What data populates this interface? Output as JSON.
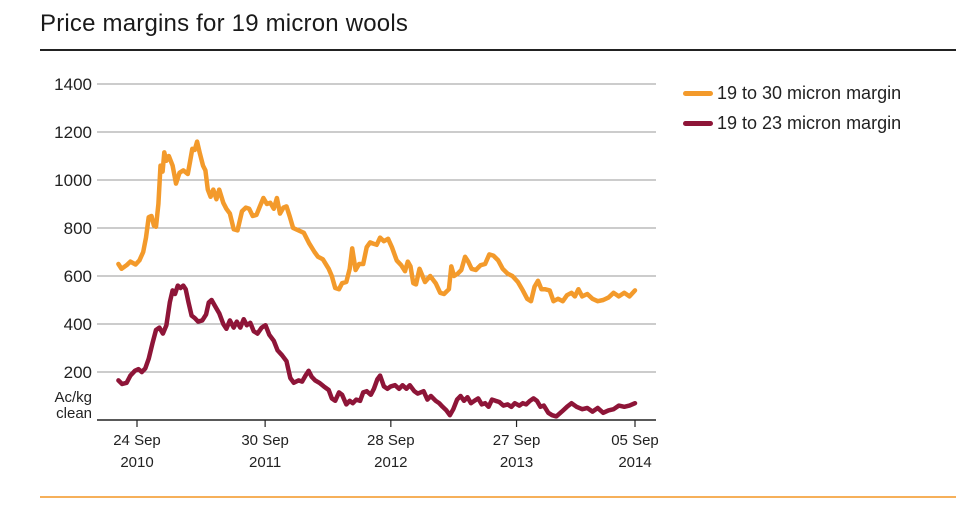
{
  "title": "Price margins for 19 micron wools",
  "colors": {
    "orange": "#F39A2B",
    "maroon": "#8E1538",
    "grid": "#9a9a9a",
    "bottom_rule": "#F6B05A"
  },
  "chart_data": {
    "type": "line",
    "title": "Price margins for 19 micron wools",
    "ylabel": "Ac/kg clean",
    "ylabel_lines": [
      "Ac/kg",
      "clean"
    ],
    "ylim": [
      0,
      1400
    ],
    "yticks": [
      200,
      400,
      600,
      800,
      1000,
      1200,
      1400
    ],
    "grid": "horizontal",
    "legend_position": "top-right",
    "xlim": [
      "2010-08-01",
      "2014-09-05"
    ],
    "xticks": [
      {
        "date": "2010-09-24",
        "label_top": "24 Sep",
        "label_bottom": "2010"
      },
      {
        "date": "2011-09-30",
        "label_top": "30 Sep",
        "label_bottom": "2011"
      },
      {
        "date": "2012-09-28",
        "label_top": "28 Sep",
        "label_bottom": "2012"
      },
      {
        "date": "2013-09-27",
        "label_top": "27 Sep",
        "label_bottom": "2013"
      },
      {
        "date": "2014-09-05",
        "label_top": "05 Sep",
        "label_bottom": "2014"
      }
    ],
    "series": [
      {
        "name": "19 to 30 micron margin",
        "color": "#F39A2B",
        "points": [
          [
            "2010-08-01",
            650
          ],
          [
            "2010-08-10",
            630
          ],
          [
            "2010-08-25",
            645
          ],
          [
            "2010-09-05",
            660
          ],
          [
            "2010-09-20",
            648
          ],
          [
            "2010-10-01",
            665
          ],
          [
            "2010-10-12",
            700
          ],
          [
            "2010-10-20",
            760
          ],
          [
            "2010-10-28",
            845
          ],
          [
            "2010-11-05",
            850
          ],
          [
            "2010-11-12",
            810
          ],
          [
            "2010-11-18",
            805
          ],
          [
            "2010-11-25",
            900
          ],
          [
            "2010-12-01",
            1060
          ],
          [
            "2010-12-07",
            1035
          ],
          [
            "2010-12-12",
            1115
          ],
          [
            "2010-12-18",
            1080
          ],
          [
            "2010-12-25",
            1100
          ],
          [
            "2011-01-05",
            1060
          ],
          [
            "2011-01-15",
            985
          ],
          [
            "2011-01-25",
            1030
          ],
          [
            "2011-02-05",
            1040
          ],
          [
            "2011-02-18",
            1025
          ],
          [
            "2011-02-25",
            1080
          ],
          [
            "2011-03-03",
            1130
          ],
          [
            "2011-03-10",
            1125
          ],
          [
            "2011-03-17",
            1160
          ],
          [
            "2011-03-25",
            1110
          ],
          [
            "2011-04-03",
            1060
          ],
          [
            "2011-04-10",
            1040
          ],
          [
            "2011-04-17",
            960
          ],
          [
            "2011-04-25",
            930
          ],
          [
            "2011-05-03",
            960
          ],
          [
            "2011-05-12",
            920
          ],
          [
            "2011-05-20",
            960
          ],
          [
            "2011-06-01",
            905
          ],
          [
            "2011-06-10",
            880
          ],
          [
            "2011-06-20",
            860
          ],
          [
            "2011-07-01",
            795
          ],
          [
            "2011-07-12",
            790
          ],
          [
            "2011-07-25",
            870
          ],
          [
            "2011-08-05",
            885
          ],
          [
            "2011-08-15",
            880
          ],
          [
            "2011-08-25",
            850
          ],
          [
            "2011-09-05",
            855
          ],
          [
            "2011-09-15",
            890
          ],
          [
            "2011-09-25",
            925
          ],
          [
            "2011-10-05",
            900
          ],
          [
            "2011-10-15",
            905
          ],
          [
            "2011-10-25",
            880
          ],
          [
            "2011-11-03",
            925
          ],
          [
            "2011-11-12",
            860
          ],
          [
            "2011-11-22",
            885
          ],
          [
            "2011-12-01",
            890
          ],
          [
            "2011-12-10",
            850
          ],
          [
            "2011-12-20",
            800
          ],
          [
            "2012-01-05",
            790
          ],
          [
            "2012-01-20",
            780
          ],
          [
            "2012-02-05",
            735
          ],
          [
            "2012-02-20",
            700
          ],
          [
            "2012-03-01",
            680
          ],
          [
            "2012-03-15",
            670
          ],
          [
            "2012-04-01",
            630
          ],
          [
            "2012-04-10",
            600
          ],
          [
            "2012-04-20",
            550
          ],
          [
            "2012-05-01",
            545
          ],
          [
            "2012-05-10",
            570
          ],
          [
            "2012-05-22",
            575
          ],
          [
            "2012-06-01",
            630
          ],
          [
            "2012-06-08",
            715
          ],
          [
            "2012-06-18",
            625
          ],
          [
            "2012-06-28",
            650
          ],
          [
            "2012-07-10",
            650
          ],
          [
            "2012-07-20",
            720
          ],
          [
            "2012-07-30",
            740
          ],
          [
            "2012-08-08",
            735
          ],
          [
            "2012-08-18",
            730
          ],
          [
            "2012-08-28",
            760
          ],
          [
            "2012-09-08",
            745
          ],
          [
            "2012-09-20",
            755
          ],
          [
            "2012-10-01",
            720
          ],
          [
            "2012-10-15",
            665
          ],
          [
            "2012-10-28",
            645
          ],
          [
            "2012-11-08",
            620
          ],
          [
            "2012-11-16",
            660
          ],
          [
            "2012-11-24",
            640
          ],
          [
            "2012-12-02",
            570
          ],
          [
            "2012-12-10",
            565
          ],
          [
            "2012-12-20",
            630
          ],
          [
            "2013-01-05",
            575
          ],
          [
            "2013-01-20",
            600
          ],
          [
            "2013-02-05",
            570
          ],
          [
            "2013-02-18",
            530
          ],
          [
            "2013-03-01",
            525
          ],
          [
            "2013-03-15",
            545
          ],
          [
            "2013-03-22",
            640
          ],
          [
            "2013-03-30",
            600
          ],
          [
            "2013-04-10",
            610
          ],
          [
            "2013-04-20",
            625
          ],
          [
            "2013-05-01",
            680
          ],
          [
            "2013-05-10",
            660
          ],
          [
            "2013-05-20",
            630
          ],
          [
            "2013-06-01",
            625
          ],
          [
            "2013-06-15",
            645
          ],
          [
            "2013-06-28",
            650
          ],
          [
            "2013-07-10",
            690
          ],
          [
            "2013-07-22",
            685
          ],
          [
            "2013-08-05",
            665
          ],
          [
            "2013-08-18",
            630
          ],
          [
            "2013-09-01",
            610
          ],
          [
            "2013-09-15",
            600
          ],
          [
            "2013-10-01",
            575
          ],
          [
            "2013-10-15",
            540
          ],
          [
            "2013-10-28",
            505
          ],
          [
            "2013-11-08",
            495
          ],
          [
            "2013-11-18",
            555
          ],
          [
            "2013-11-28",
            580
          ],
          [
            "2013-12-08",
            545
          ],
          [
            "2013-12-18",
            545
          ],
          [
            "2014-01-01",
            540
          ],
          [
            "2014-01-12",
            495
          ],
          [
            "2014-01-25",
            505
          ],
          [
            "2014-02-08",
            495
          ],
          [
            "2014-02-20",
            520
          ],
          [
            "2014-03-05",
            530
          ],
          [
            "2014-03-15",
            515
          ],
          [
            "2014-03-25",
            545
          ],
          [
            "2014-04-05",
            515
          ],
          [
            "2014-04-20",
            525
          ],
          [
            "2014-05-05",
            505
          ],
          [
            "2014-05-20",
            495
          ],
          [
            "2014-06-05",
            500
          ],
          [
            "2014-06-20",
            510
          ],
          [
            "2014-07-05",
            530
          ],
          [
            "2014-07-20",
            515
          ],
          [
            "2014-08-05",
            530
          ],
          [
            "2014-08-20",
            515
          ],
          [
            "2014-09-05",
            540
          ]
        ]
      },
      {
        "name": "19 to 23 micron margin",
        "color": "#8E1538",
        "points": [
          [
            "2010-08-01",
            165
          ],
          [
            "2010-08-12",
            150
          ],
          [
            "2010-08-25",
            155
          ],
          [
            "2010-09-05",
            185
          ],
          [
            "2010-09-18",
            205
          ],
          [
            "2010-09-28",
            212
          ],
          [
            "2010-10-08",
            200
          ],
          [
            "2010-10-18",
            215
          ],
          [
            "2010-10-28",
            255
          ],
          [
            "2010-11-08",
            320
          ],
          [
            "2010-11-18",
            375
          ],
          [
            "2010-11-28",
            385
          ],
          [
            "2010-12-08",
            360
          ],
          [
            "2010-12-18",
            395
          ],
          [
            "2010-12-28",
            490
          ],
          [
            "2011-01-05",
            540
          ],
          [
            "2011-01-12",
            525
          ],
          [
            "2011-01-20",
            560
          ],
          [
            "2011-01-28",
            550
          ],
          [
            "2011-02-05",
            560
          ],
          [
            "2011-02-12",
            545
          ],
          [
            "2011-02-20",
            490
          ],
          [
            "2011-03-01",
            435
          ],
          [
            "2011-03-10",
            425
          ],
          [
            "2011-03-20",
            410
          ],
          [
            "2011-04-01",
            415
          ],
          [
            "2011-04-12",
            440
          ],
          [
            "2011-04-20",
            490
          ],
          [
            "2011-04-28",
            500
          ],
          [
            "2011-05-08",
            475
          ],
          [
            "2011-05-20",
            445
          ],
          [
            "2011-06-01",
            400
          ],
          [
            "2011-06-10",
            380
          ],
          [
            "2011-06-20",
            415
          ],
          [
            "2011-07-01",
            385
          ],
          [
            "2011-07-10",
            410
          ],
          [
            "2011-07-20",
            385
          ],
          [
            "2011-07-30",
            420
          ],
          [
            "2011-08-08",
            395
          ],
          [
            "2011-08-18",
            405
          ],
          [
            "2011-08-28",
            370
          ],
          [
            "2011-09-08",
            360
          ],
          [
            "2011-09-20",
            385
          ],
          [
            "2011-10-01",
            395
          ],
          [
            "2011-10-12",
            355
          ],
          [
            "2011-10-25",
            330
          ],
          [
            "2011-11-05",
            290
          ],
          [
            "2011-11-18",
            270
          ],
          [
            "2011-12-01",
            245
          ],
          [
            "2011-12-12",
            175
          ],
          [
            "2011-12-22",
            155
          ],
          [
            "2012-01-05",
            165
          ],
          [
            "2012-01-15",
            160
          ],
          [
            "2012-01-25",
            185
          ],
          [
            "2012-02-03",
            205
          ],
          [
            "2012-02-12",
            180
          ],
          [
            "2012-02-22",
            165
          ],
          [
            "2012-03-05",
            155
          ],
          [
            "2012-03-18",
            140
          ],
          [
            "2012-04-01",
            125
          ],
          [
            "2012-04-10",
            90
          ],
          [
            "2012-04-20",
            80
          ],
          [
            "2012-05-01",
            115
          ],
          [
            "2012-05-10",
            105
          ],
          [
            "2012-05-22",
            65
          ],
          [
            "2012-06-01",
            80
          ],
          [
            "2012-06-10",
            70
          ],
          [
            "2012-06-20",
            85
          ],
          [
            "2012-07-01",
            80
          ],
          [
            "2012-07-10",
            115
          ],
          [
            "2012-07-20",
            120
          ],
          [
            "2012-08-01",
            105
          ],
          [
            "2012-08-10",
            130
          ],
          [
            "2012-08-20",
            170
          ],
          [
            "2012-08-28",
            185
          ],
          [
            "2012-09-08",
            140
          ],
          [
            "2012-09-18",
            130
          ],
          [
            "2012-09-28",
            140
          ],
          [
            "2012-10-10",
            145
          ],
          [
            "2012-10-22",
            130
          ],
          [
            "2012-11-01",
            145
          ],
          [
            "2012-11-12",
            130
          ],
          [
            "2012-11-22",
            145
          ],
          [
            "2012-12-05",
            120
          ],
          [
            "2012-12-15",
            110
          ],
          [
            "2013-01-01",
            120
          ],
          [
            "2013-01-12",
            85
          ],
          [
            "2013-01-22",
            100
          ],
          [
            "2013-02-05",
            80
          ],
          [
            "2013-02-15",
            70
          ],
          [
            "2013-02-25",
            55
          ],
          [
            "2013-03-08",
            40
          ],
          [
            "2013-03-18",
            20
          ],
          [
            "2013-03-28",
            45
          ],
          [
            "2013-04-08",
            85
          ],
          [
            "2013-04-18",
            100
          ],
          [
            "2013-04-28",
            80
          ],
          [
            "2013-05-08",
            95
          ],
          [
            "2013-05-18",
            70
          ],
          [
            "2013-05-28",
            80
          ],
          [
            "2013-06-08",
            90
          ],
          [
            "2013-06-18",
            65
          ],
          [
            "2013-06-28",
            70
          ],
          [
            "2013-07-08",
            55
          ],
          [
            "2013-07-18",
            85
          ],
          [
            "2013-07-28",
            80
          ],
          [
            "2013-08-08",
            75
          ],
          [
            "2013-08-20",
            60
          ],
          [
            "2013-09-01",
            65
          ],
          [
            "2013-09-12",
            55
          ],
          [
            "2013-09-22",
            70
          ],
          [
            "2013-10-05",
            60
          ],
          [
            "2013-10-15",
            70
          ],
          [
            "2013-10-25",
            65
          ],
          [
            "2013-11-05",
            80
          ],
          [
            "2013-11-15",
            90
          ],
          [
            "2013-11-25",
            80
          ],
          [
            "2013-12-05",
            55
          ],
          [
            "2013-12-15",
            60
          ],
          [
            "2013-12-28",
            30
          ],
          [
            "2014-01-08",
            20
          ],
          [
            "2014-01-20",
            15
          ],
          [
            "2014-02-05",
            35
          ],
          [
            "2014-02-20",
            55
          ],
          [
            "2014-03-05",
            70
          ],
          [
            "2014-03-20",
            55
          ],
          [
            "2014-04-05",
            45
          ],
          [
            "2014-04-20",
            50
          ],
          [
            "2014-05-05",
            35
          ],
          [
            "2014-05-20",
            50
          ],
          [
            "2014-06-05",
            30
          ],
          [
            "2014-06-20",
            40
          ],
          [
            "2014-07-05",
            45
          ],
          [
            "2014-07-20",
            60
          ],
          [
            "2014-08-05",
            55
          ],
          [
            "2014-08-20",
            60
          ],
          [
            "2014-09-05",
            70
          ]
        ]
      }
    ]
  }
}
